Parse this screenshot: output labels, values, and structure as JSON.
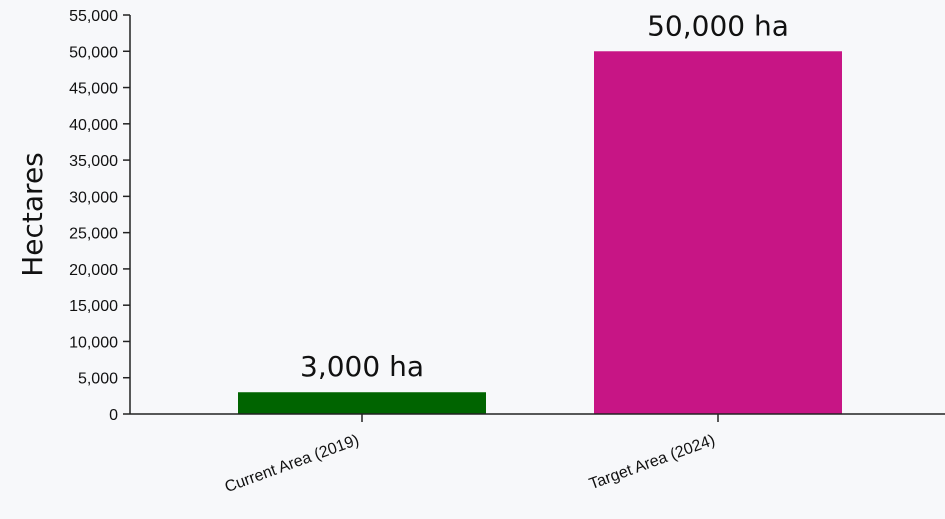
{
  "chart_data": {
    "type": "bar",
    "title": "",
    "xlabel": "",
    "ylabel": "Hectares",
    "ylim": [
      0,
      55000
    ],
    "ytick_step": 5000,
    "y_tick_labels": [
      "0",
      "5,000",
      "10,000",
      "15,000",
      "20,000",
      "25,000",
      "30,000",
      "35,000",
      "40,000",
      "45,000",
      "50,000",
      "55,000"
    ],
    "categories": [
      "Current Area (2019)",
      "Target Area (2024)"
    ],
    "values": [
      3000,
      50000
    ],
    "data_labels": [
      "3,000 ha",
      "50,000 ha"
    ],
    "colors": [
      "#006400",
      "#c71585"
    ],
    "grid": false,
    "legend": "none"
  }
}
